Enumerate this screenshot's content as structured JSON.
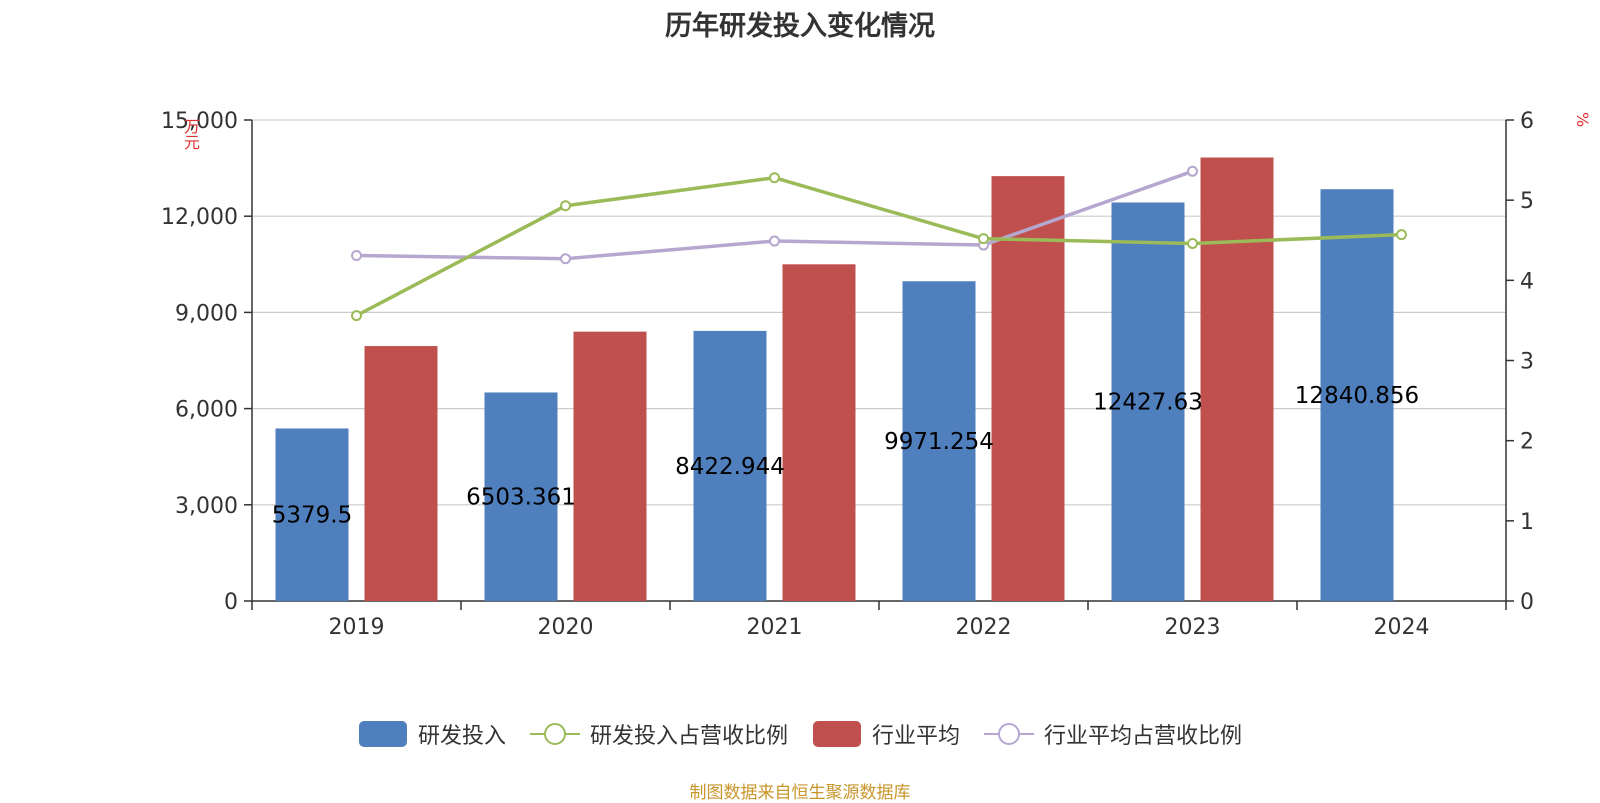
{
  "title": "历年研发投入变化情况",
  "source_note": "制图数据来自恒生聚源数据库",
  "colors": {
    "rd_bar": "#4f7fbd",
    "industry_bar": "#c0504d",
    "rd_ratio_line": "#9bbb59",
    "industry_ratio_line": "#b5a7cf",
    "axis": "#333333",
    "grid": "#cccccc",
    "unit_label": "#e03030"
  },
  "chart_data": {
    "type": "bar",
    "title": "历年研发投入变化情况",
    "categories": [
      "2019",
      "2020",
      "2021",
      "2022",
      "2023",
      "2024"
    ],
    "y_left": {
      "label": "万元",
      "range": [
        0,
        15000
      ],
      "ticks": [
        "0",
        "3,000",
        "6,000",
        "9,000",
        "12,000",
        "15,000"
      ]
    },
    "y_right": {
      "label": "%",
      "range": [
        0,
        6
      ],
      "ticks": [
        "0",
        "1",
        "2",
        "3",
        "4",
        "5",
        "6"
      ]
    },
    "series": [
      {
        "name": "研发投入",
        "type": "bar",
        "axis": "left",
        "values": [
          5379.5,
          6503.361,
          8422.944,
          9971.254,
          12427.63,
          12840.856
        ],
        "labels": [
          "5379.5",
          "6503.361",
          "8422.944",
          "9971.254",
          "12427.63",
          "12840.856"
        ]
      },
      {
        "name": "研发投入占营收比例",
        "type": "line",
        "axis": "right",
        "values": [
          3.56,
          4.93,
          5.28,
          4.52,
          4.46,
          4.57
        ]
      },
      {
        "name": "行业平均",
        "type": "bar",
        "axis": "left",
        "values": [
          7950,
          8400,
          10500,
          13250,
          13830,
          null
        ]
      },
      {
        "name": "行业平均占营收比例",
        "type": "line",
        "axis": "right",
        "values": [
          4.31,
          4.27,
          4.49,
          4.44,
          5.36,
          null
        ]
      }
    ],
    "legend_position": "bottom-center",
    "grid": true
  }
}
